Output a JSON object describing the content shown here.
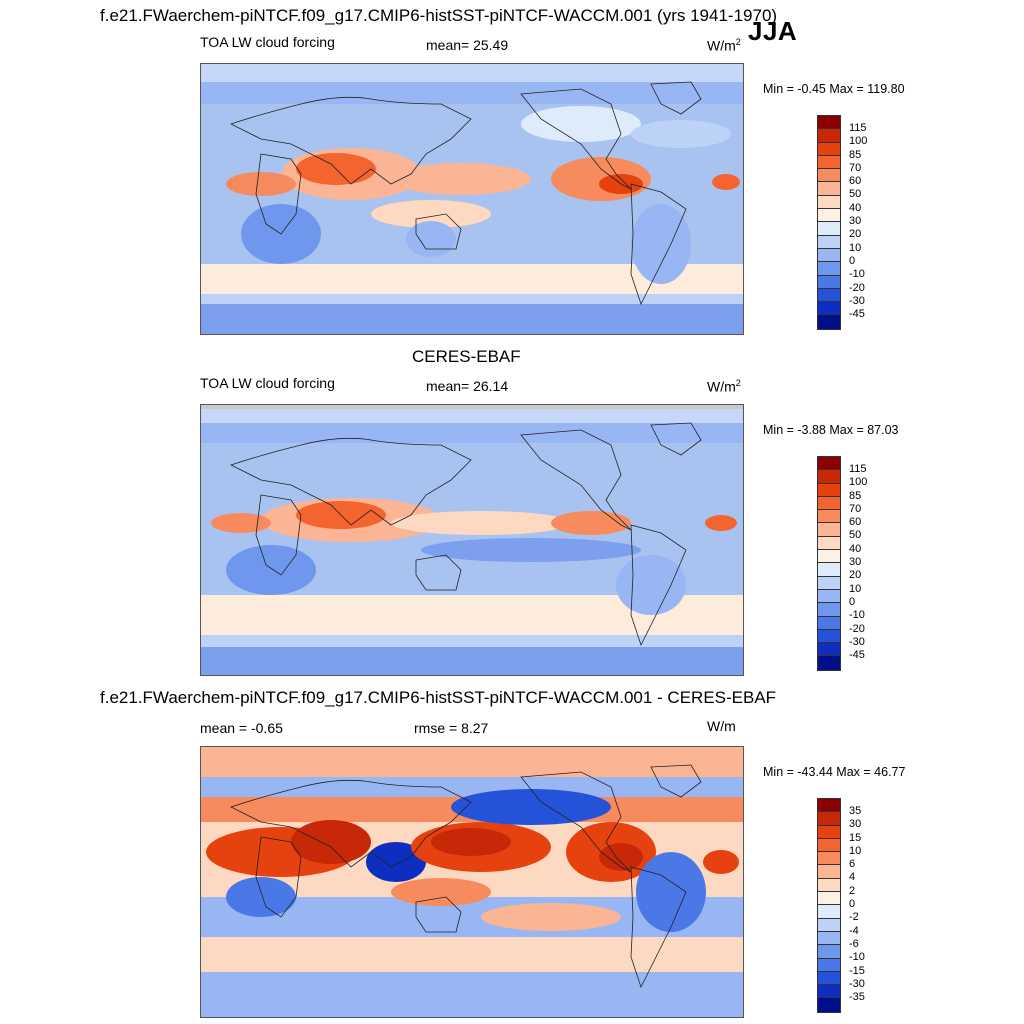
{
  "season": "JJA",
  "units_main": "W/m",
  "units_sup": "2",
  "units_diff": "W/m",
  "panels": [
    {
      "title": "f.e21.FWaerchem-piNTCF.f09_g17.CMIP6-histSST-piNTCF-WACCM.001 (yrs 1941-1970)",
      "variable": "TOA LW cloud forcing",
      "mean_label": "mean=  25.49",
      "minmax": "Min =  -0.45 Max = 119.80"
    },
    {
      "title": "CERES-EBAF",
      "variable": "TOA LW cloud forcing",
      "mean_label": "mean=  26.14",
      "minmax": "Min =  -3.88 Max =  87.03"
    },
    {
      "title": "f.e21.FWaerchem-piNTCF.f09_g17.CMIP6-histSST-piNTCF-WACCM.001 - CERES-EBAF",
      "mean_label": "mean =  -0.65",
      "rmse_label": "rmse =   8.27",
      "minmax": "Min = -43.44 Max =  46.77"
    }
  ],
  "colorbar_main": {
    "levels": [
      "115",
      "100",
      "85",
      "70",
      "60",
      "50",
      "40",
      "30",
      "20",
      "10",
      "0",
      "-10",
      "-20",
      "-30",
      "-45"
    ],
    "colors": [
      "#8b0000",
      "#c62808",
      "#e6420f",
      "#f4642f",
      "#f88b5e",
      "#fbb594",
      "#fdd9c1",
      "#fdf1e6",
      "#deebfb",
      "#bcd3f7",
      "#98b6f3",
      "#7097ee",
      "#4a78e6",
      "#2452d8",
      "#0d2ec0",
      "#00108a"
    ]
  },
  "colorbar_diff": {
    "levels": [
      "35",
      "30",
      "15",
      "10",
      "6",
      "4",
      "2",
      "0",
      "-2",
      "-4",
      "-6",
      "-10",
      "-15",
      "-30",
      "-35"
    ],
    "colors": [
      "#8b0000",
      "#c62808",
      "#e6420f",
      "#f4642f",
      "#f88b5e",
      "#fbb594",
      "#fdd9c1",
      "#fdf1e6",
      "#deebfb",
      "#bcd3f7",
      "#98b6f3",
      "#7097ee",
      "#4a78e6",
      "#2452d8",
      "#0d2ec0",
      "#00108a"
    ]
  }
}
